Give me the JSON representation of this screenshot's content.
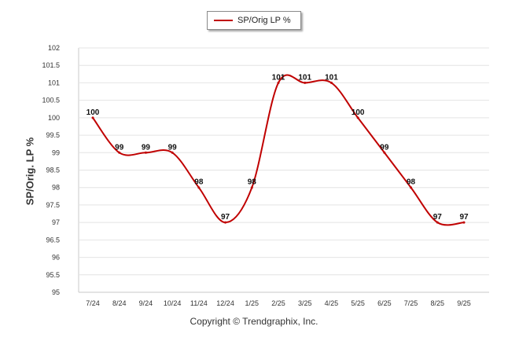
{
  "chart_data": {
    "type": "line",
    "categories": [
      "7/24",
      "8/24",
      "9/24",
      "10/24",
      "11/24",
      "12/24",
      "1/25",
      "2/25",
      "3/25",
      "4/25",
      "5/25",
      "6/25",
      "7/25",
      "8/25",
      "9/25"
    ],
    "series": [
      {
        "name": "SP/Orig LP %",
        "values": [
          100,
          99,
          99,
          99,
          98,
          97,
          98,
          101,
          101,
          101,
          100,
          99,
          98,
          97,
          97
        ],
        "labels": [
          "100",
          "99",
          "99",
          "99",
          "98",
          "97",
          "98",
          "101",
          "101",
          "101",
          "100",
          "99",
          "98",
          "97",
          "97"
        ],
        "color": "#c00000"
      }
    ],
    "yticks": [
      "102",
      "101.5",
      "101",
      "100.5",
      "100",
      "99.5",
      "99",
      "98.5",
      "98",
      "97.5",
      "97",
      "96.5",
      "96",
      "95.5",
      "95"
    ],
    "ylim": [
      95,
      102
    ],
    "ylabel": "SP/Orig. LP %",
    "xlabel": "",
    "grid": true,
    "legend": "top-center"
  },
  "footer": {
    "copyright": "Copyright © Trendgraphix, Inc."
  }
}
